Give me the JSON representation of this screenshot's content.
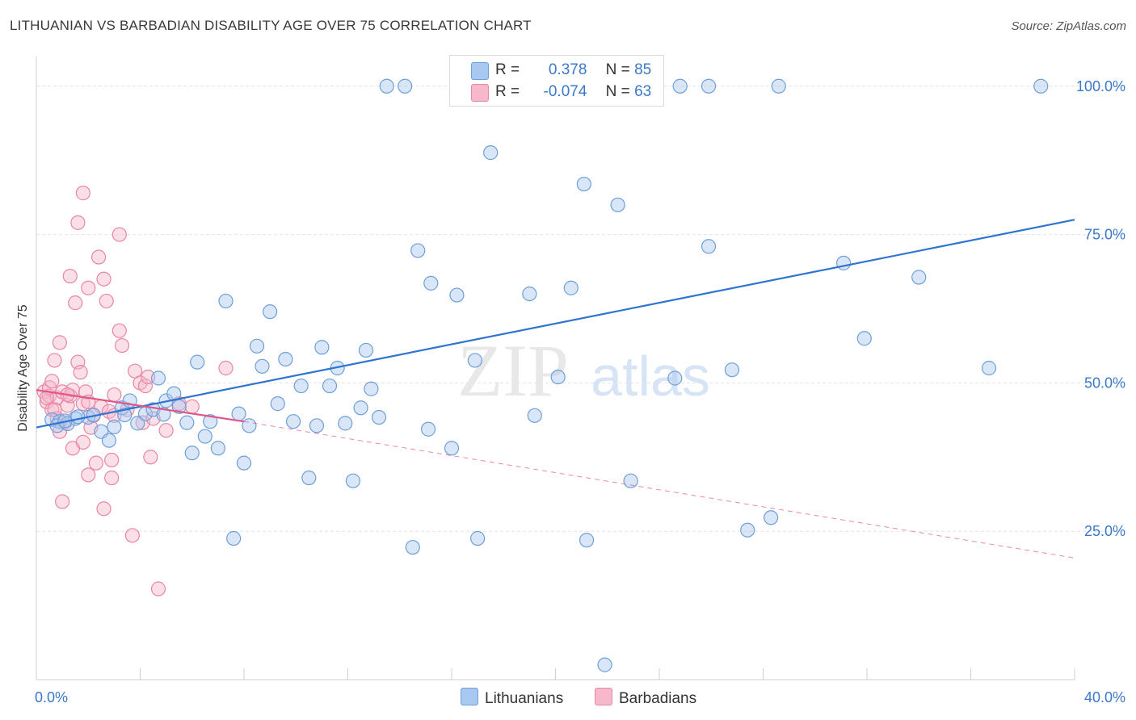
{
  "title": "LITHUANIAN VS BARBADIAN DISABILITY AGE OVER 75 CORRELATION CHART",
  "source": "Source: ZipAtlas.com",
  "watermark": {
    "zip": "ZIP",
    "atlas": "atlas"
  },
  "legend": {
    "rows": [
      {
        "r_label": "R =",
        "r_value": "0.378",
        "n_label": "N =",
        "n_value": "85",
        "color": "#a9c8ef"
      },
      {
        "r_label": "R =",
        "r_value": "-0.074",
        "n_label": "N =",
        "n_value": "63",
        "color": "#f6b8ca"
      }
    ]
  },
  "bottom_legend": {
    "lithuanians": "Lithuanians",
    "barbadians": "Barbadians"
  },
  "colors": {
    "blue_fill": "#a9c8ef",
    "blue_stroke": "#6f9fd8",
    "blue_line": "#2f74d0",
    "pink_fill": "#f6b8ca",
    "pink_stroke": "#e886a5",
    "pink_line": "#e0568a",
    "grid": "#e4e4e4",
    "axis_text": "#3a78c9"
  },
  "chart_data": {
    "type": "scatter",
    "title": "LITHUANIAN VS BARBADIAN DISABILITY AGE OVER 75 CORRELATION CHART",
    "xlabel": "",
    "ylabel": "Disability Age Over 75",
    "xlim": [
      0,
      40
    ],
    "ylim": [
      0,
      105
    ],
    "x_tick_labels": [
      "0.0%",
      "40.0%"
    ],
    "y_ticks": [
      25,
      50,
      75,
      100
    ],
    "y_tick_labels": [
      "25.0%",
      "50.0%",
      "75.0%",
      "100.0%"
    ],
    "grid": true,
    "legend_position": "top-center",
    "series": [
      {
        "name": "Lithuanians",
        "trend": {
          "x": [
            0,
            40
          ],
          "y": [
            42.5,
            77.5
          ],
          "style": "solid"
        },
        "points": [
          [
            0.6,
            43.8
          ],
          [
            0.9,
            43.5
          ],
          [
            1.2,
            43.1
          ],
          [
            1.5,
            44.0
          ],
          [
            2.0,
            44.2
          ],
          [
            2.5,
            41.8
          ],
          [
            2.8,
            40.3
          ],
          [
            3.0,
            42.6
          ],
          [
            3.3,
            45.8
          ],
          [
            3.6,
            47.0
          ],
          [
            3.9,
            43.2
          ],
          [
            4.2,
            44.8
          ],
          [
            4.5,
            45.5
          ],
          [
            4.7,
            50.8
          ],
          [
            5.0,
            47.0
          ],
          [
            5.3,
            48.2
          ],
          [
            5.5,
            46.0
          ],
          [
            5.8,
            43.3
          ],
          [
            6.0,
            38.2
          ],
          [
            6.2,
            53.5
          ],
          [
            6.5,
            41.0
          ],
          [
            6.7,
            43.5
          ],
          [
            7.0,
            39.0
          ],
          [
            7.3,
            63.8
          ],
          [
            7.6,
            23.8
          ],
          [
            7.8,
            44.8
          ],
          [
            8.0,
            36.5
          ],
          [
            8.2,
            42.8
          ],
          [
            8.5,
            56.2
          ],
          [
            8.7,
            52.8
          ],
          [
            9.0,
            62.0
          ],
          [
            9.3,
            46.5
          ],
          [
            9.6,
            54.0
          ],
          [
            9.9,
            43.5
          ],
          [
            10.2,
            49.5
          ],
          [
            10.5,
            34.0
          ],
          [
            10.8,
            42.8
          ],
          [
            11.0,
            56.0
          ],
          [
            11.3,
            49.5
          ],
          [
            11.6,
            52.5
          ],
          [
            11.9,
            43.2
          ],
          [
            12.2,
            33.5
          ],
          [
            12.5,
            45.8
          ],
          [
            12.7,
            55.5
          ],
          [
            12.9,
            49.0
          ],
          [
            13.2,
            44.2
          ],
          [
            13.5,
            100.0
          ],
          [
            14.2,
            100.0
          ],
          [
            14.5,
            22.3
          ],
          [
            14.7,
            72.3
          ],
          [
            15.1,
            42.2
          ],
          [
            15.2,
            66.8
          ],
          [
            16.0,
            39.0
          ],
          [
            16.2,
            64.8
          ],
          [
            16.9,
            53.8
          ],
          [
            17.0,
            23.8
          ],
          [
            17.5,
            88.8
          ],
          [
            19.0,
            65.0
          ],
          [
            19.2,
            44.5
          ],
          [
            20.1,
            51.0
          ],
          [
            20.6,
            66.0
          ],
          [
            21.1,
            83.5
          ],
          [
            21.2,
            23.5
          ],
          [
            21.9,
            2.5
          ],
          [
            22.4,
            80.0
          ],
          [
            22.9,
            33.5
          ],
          [
            24.6,
            50.8
          ],
          [
            24.8,
            100.0
          ],
          [
            25.9,
            73.0
          ],
          [
            25.9,
            100.0
          ],
          [
            26.8,
            52.2
          ],
          [
            27.4,
            25.2
          ],
          [
            28.3,
            27.3
          ],
          [
            28.6,
            100.0
          ],
          [
            31.1,
            70.2
          ],
          [
            31.9,
            57.5
          ],
          [
            34.0,
            67.8
          ],
          [
            36.7,
            52.5
          ],
          [
            38.7,
            100.0
          ],
          [
            0.8,
            42.8
          ],
          [
            1.1,
            43.6
          ],
          [
            1.6,
            44.3
          ],
          [
            2.2,
            44.6
          ],
          [
            3.4,
            44.6
          ],
          [
            4.9,
            44.7
          ]
        ]
      },
      {
        "name": "Barbadians",
        "trend": {
          "x": [
            0,
            8
          ],
          "y": [
            48.8,
            43.5
          ],
          "style": "solid",
          "extended": {
            "x": [
              8,
              40
            ],
            "y": [
              43.5,
              20.5
            ],
            "style": "dashed"
          }
        },
        "points": [
          [
            0.3,
            48.5
          ],
          [
            0.4,
            46.8
          ],
          [
            0.5,
            47.8
          ],
          [
            0.5,
            49.2
          ],
          [
            0.6,
            50.3
          ],
          [
            0.6,
            45.5
          ],
          [
            0.7,
            53.8
          ],
          [
            0.8,
            47.5
          ],
          [
            0.8,
            44.0
          ],
          [
            0.9,
            41.8
          ],
          [
            0.9,
            56.8
          ],
          [
            1.0,
            48.5
          ],
          [
            1.0,
            30.0
          ],
          [
            1.1,
            43.3
          ],
          [
            1.2,
            46.2
          ],
          [
            1.3,
            68.0
          ],
          [
            1.3,
            47.8
          ],
          [
            1.4,
            39.0
          ],
          [
            1.4,
            48.8
          ],
          [
            1.5,
            63.5
          ],
          [
            1.6,
            77.0
          ],
          [
            1.6,
            53.5
          ],
          [
            1.7,
            51.8
          ],
          [
            1.8,
            82.0
          ],
          [
            1.8,
            46.5
          ],
          [
            1.8,
            40.0
          ],
          [
            1.9,
            48.5
          ],
          [
            2.0,
            66.0
          ],
          [
            2.0,
            34.5
          ],
          [
            2.1,
            42.5
          ],
          [
            2.2,
            44.5
          ],
          [
            2.3,
            36.5
          ],
          [
            2.4,
            71.2
          ],
          [
            2.5,
            46.0
          ],
          [
            2.6,
            67.5
          ],
          [
            2.6,
            28.8
          ],
          [
            2.7,
            63.8
          ],
          [
            2.8,
            45.2
          ],
          [
            2.9,
            34.0
          ],
          [
            2.9,
            37.0
          ],
          [
            3.0,
            44.5
          ],
          [
            3.2,
            75.0
          ],
          [
            3.2,
            58.8
          ],
          [
            3.3,
            56.3
          ],
          [
            3.5,
            45.5
          ],
          [
            3.7,
            24.3
          ],
          [
            3.8,
            52.0
          ],
          [
            4.0,
            50.0
          ],
          [
            4.1,
            43.3
          ],
          [
            4.2,
            49.5
          ],
          [
            4.3,
            51.0
          ],
          [
            4.4,
            37.5
          ],
          [
            4.5,
            44.0
          ],
          [
            4.7,
            15.3
          ],
          [
            5.0,
            42.0
          ],
          [
            5.5,
            46.5
          ],
          [
            6.0,
            46.0
          ],
          [
            7.3,
            52.5
          ],
          [
            0.4,
            47.5
          ],
          [
            0.7,
            45.5
          ],
          [
            1.2,
            48.0
          ],
          [
            2.0,
            46.8
          ],
          [
            3.0,
            48.0
          ]
        ]
      }
    ]
  }
}
